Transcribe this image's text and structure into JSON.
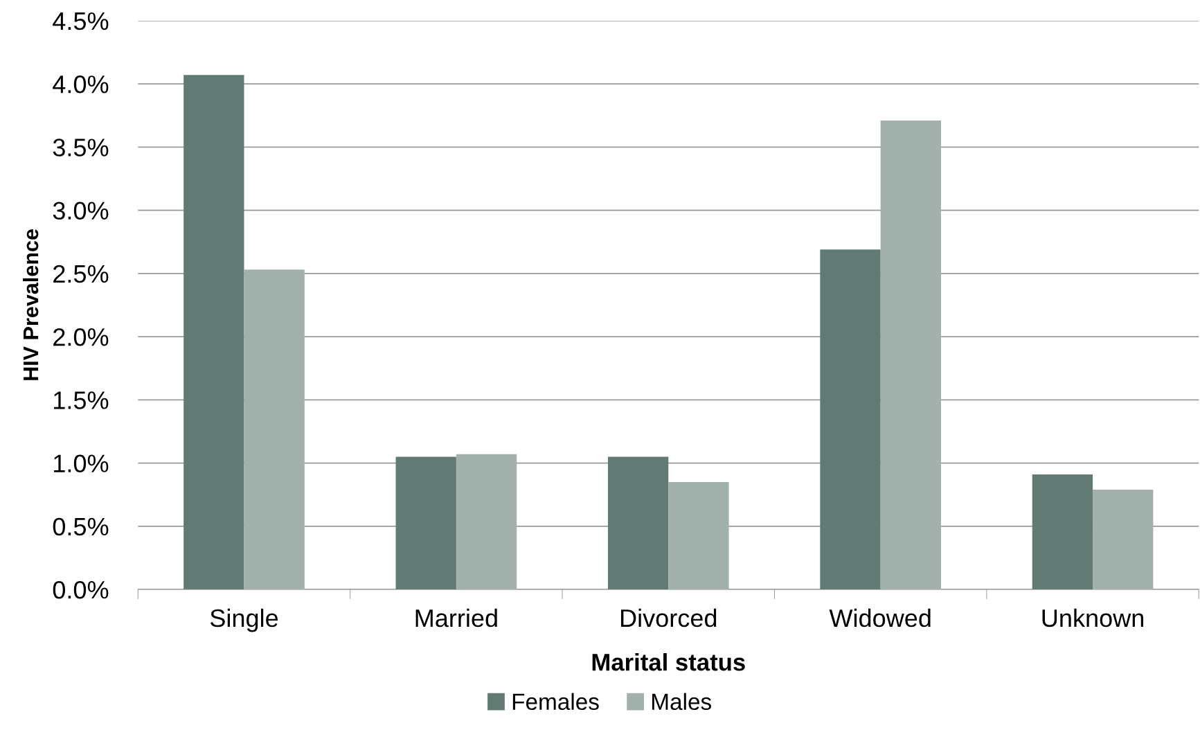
{
  "chart_data": {
    "type": "bar",
    "xlabel": "Marital status",
    "ylabel": "HIV Prevalence",
    "categories": [
      "Single",
      "Married",
      "Divorced",
      "Widowed",
      "Unknown"
    ],
    "series": [
      {
        "name": "Females",
        "color": "#627a74",
        "values": [
          4.07,
          1.05,
          1.05,
          2.69,
          0.91
        ]
      },
      {
        "name": "Males",
        "color": "#a2b1ac",
        "values": [
          2.53,
          1.07,
          0.85,
          3.71,
          0.79
        ]
      }
    ],
    "ylim": [
      0,
      4.5
    ],
    "yticks": [
      {
        "value": 0,
        "label": "0.0%"
      },
      {
        "value": 0.5,
        "label": "0.5%"
      },
      {
        "value": 1,
        "label": "1.0%"
      },
      {
        "value": 1.5,
        "label": "1.5%"
      },
      {
        "value": 2,
        "label": "2.0%"
      },
      {
        "value": 2.5,
        "label": "2.5%"
      },
      {
        "value": 3,
        "label": "3.0%"
      },
      {
        "value": 3.5,
        "label": "3.5%"
      },
      {
        "value": 4,
        "label": "4.0%"
      },
      {
        "value": 4.5,
        "label": "4.5%"
      }
    ],
    "grid": "y",
    "legend": "bottom"
  }
}
